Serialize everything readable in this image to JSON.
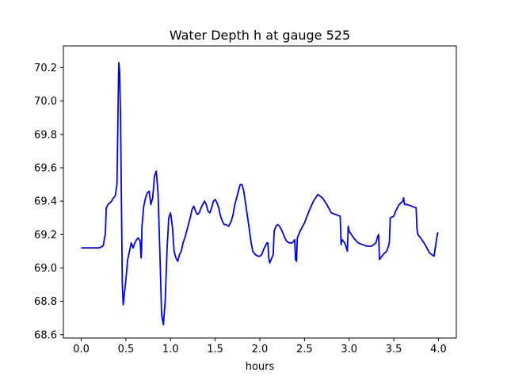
{
  "chart_data": {
    "type": "line",
    "title": "Water Depth h at gauge 525",
    "xlabel": "hours",
    "ylabel": "",
    "xlim": [
      -0.2,
      4.2
    ],
    "ylim": [
      68.58,
      70.33
    ],
    "xticks": [
      0.0,
      0.5,
      1.0,
      1.5,
      2.0,
      2.5,
      3.0,
      3.5,
      4.0
    ],
    "xtick_labels": [
      "0.0",
      "0.5",
      "1.0",
      "1.5",
      "2.0",
      "2.5",
      "3.0",
      "3.5",
      "4.0"
    ],
    "yticks": [
      68.6,
      68.8,
      69.0,
      69.2,
      69.4,
      69.6,
      69.8,
      70.0,
      70.2
    ],
    "ytick_labels": [
      "68.6",
      "68.8",
      "69.0",
      "69.2",
      "69.4",
      "69.6",
      "69.8",
      "70.0",
      "70.2"
    ],
    "grid": false,
    "series": [
      {
        "color": "#0000ff",
        "x": [
          0.0,
          0.1,
          0.2,
          0.24,
          0.25,
          0.26,
          0.27,
          0.28,
          0.3,
          0.32,
          0.34,
          0.36,
          0.38,
          0.4,
          0.42,
          0.43,
          0.44,
          0.45,
          0.46,
          0.47,
          0.48,
          0.5,
          0.52,
          0.54,
          0.56,
          0.58,
          0.6,
          0.62,
          0.64,
          0.66,
          0.67,
          0.675,
          0.68,
          0.7,
          0.72,
          0.74,
          0.76,
          0.78,
          0.8,
          0.82,
          0.84,
          0.86,
          0.88,
          0.9,
          0.92,
          0.94,
          0.96,
          0.98,
          1.0,
          1.02,
          1.04,
          1.06,
          1.08,
          1.1,
          1.12,
          1.14,
          1.16,
          1.18,
          1.2,
          1.22,
          1.24,
          1.26,
          1.28,
          1.3,
          1.32,
          1.35,
          1.38,
          1.4,
          1.42,
          1.44,
          1.46,
          1.48,
          1.5,
          1.52,
          1.54,
          1.56,
          1.58,
          1.6,
          1.62,
          1.65,
          1.68,
          1.7,
          1.72,
          1.75,
          1.78,
          1.8,
          1.82,
          1.85,
          1.88,
          1.9,
          1.92,
          1.95,
          1.98,
          2.0,
          2.02,
          2.05,
          2.08,
          2.09,
          2.1,
          2.11,
          2.15,
          2.16,
          2.18,
          2.2,
          2.22,
          2.25,
          2.28,
          2.3,
          2.33,
          2.36,
          2.38,
          2.39,
          2.4,
          2.41,
          2.42,
          2.45,
          2.5,
          2.55,
          2.6,
          2.65,
          2.7,
          2.75,
          2.8,
          2.85,
          2.9,
          2.91,
          2.92,
          2.95,
          2.97,
          2.98,
          2.99,
          3.0,
          3.05,
          3.1,
          3.15,
          3.2,
          3.25,
          3.3,
          3.32,
          3.33,
          3.34,
          3.38,
          3.42,
          3.44,
          3.45,
          3.46,
          3.5,
          3.52,
          3.54,
          3.56,
          3.58,
          3.6,
          3.61,
          3.62,
          3.65,
          3.7,
          3.75,
          3.76,
          3.77,
          3.8,
          3.85,
          3.9,
          3.95,
          3.99,
          4.0
        ],
        "y": [
          69.12,
          69.12,
          69.12,
          69.13,
          69.14,
          69.18,
          69.2,
          69.36,
          69.38,
          69.39,
          69.4,
          69.42,
          69.43,
          69.5,
          70.23,
          70.18,
          69.9,
          69.4,
          68.9,
          68.78,
          68.83,
          68.93,
          69.05,
          69.1,
          69.15,
          69.12,
          69.15,
          69.17,
          69.18,
          69.16,
          69.06,
          69.1,
          69.25,
          69.37,
          69.42,
          69.45,
          69.46,
          69.38,
          69.42,
          69.55,
          69.58,
          69.45,
          69.1,
          68.72,
          68.66,
          68.8,
          69.1,
          69.3,
          69.33,
          69.25,
          69.1,
          69.06,
          69.04,
          69.08,
          69.1,
          69.15,
          69.18,
          69.22,
          69.26,
          69.3,
          69.35,
          69.37,
          69.34,
          69.32,
          69.33,
          69.37,
          69.4,
          69.38,
          69.34,
          69.33,
          69.36,
          69.4,
          69.41,
          69.39,
          69.36,
          69.31,
          69.28,
          69.26,
          69.26,
          69.25,
          69.28,
          69.32,
          69.38,
          69.44,
          69.5,
          69.5,
          69.46,
          69.35,
          69.24,
          69.16,
          69.1,
          69.08,
          69.07,
          69.07,
          69.08,
          69.12,
          69.15,
          69.15,
          69.06,
          69.03,
          69.08,
          69.22,
          69.25,
          69.26,
          69.25,
          69.22,
          69.18,
          69.16,
          69.15,
          69.15,
          69.16,
          69.17,
          69.05,
          69.04,
          69.18,
          69.22,
          69.27,
          69.34,
          69.4,
          69.44,
          69.42,
          69.38,
          69.33,
          69.32,
          69.31,
          69.14,
          69.17,
          69.15,
          69.12,
          69.1,
          69.25,
          69.22,
          69.18,
          69.15,
          69.14,
          69.13,
          69.13,
          69.15,
          69.19,
          69.2,
          69.05,
          69.08,
          69.1,
          69.13,
          69.15,
          69.3,
          69.31,
          69.34,
          69.36,
          69.38,
          69.39,
          69.4,
          69.42,
          69.38,
          69.38,
          69.37,
          69.36,
          69.23,
          69.2,
          69.18,
          69.14,
          69.09,
          69.07,
          69.21,
          69.21
        ]
      }
    ]
  }
}
